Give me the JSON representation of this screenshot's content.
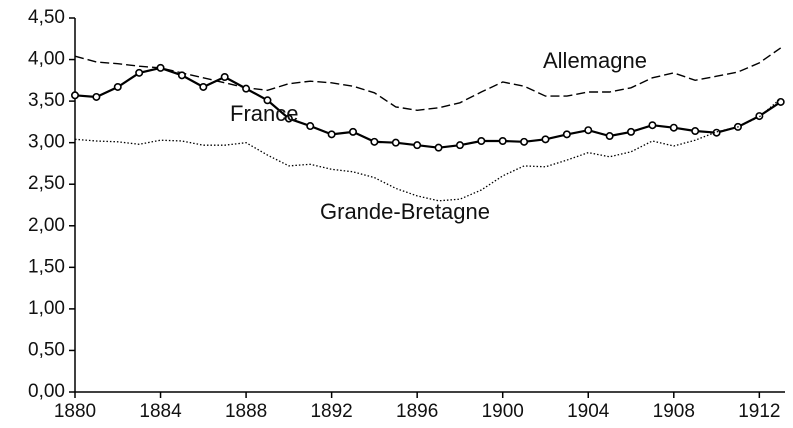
{
  "chart_data": {
    "type": "line",
    "x": [
      1880,
      1881,
      1882,
      1883,
      1884,
      1885,
      1886,
      1887,
      1888,
      1889,
      1890,
      1891,
      1892,
      1893,
      1894,
      1895,
      1896,
      1897,
      1898,
      1899,
      1900,
      1901,
      1902,
      1903,
      1904,
      1905,
      1906,
      1907,
      1908,
      1909,
      1910,
      1911,
      1912,
      1913
    ],
    "series": [
      {
        "name": "Allemagne",
        "color": "#000000",
        "style": "dashed",
        "values": [
          4.04,
          3.97,
          3.95,
          3.92,
          3.9,
          3.84,
          3.78,
          3.72,
          3.66,
          3.63,
          3.71,
          3.74,
          3.72,
          3.68,
          3.6,
          3.43,
          3.39,
          3.42,
          3.48,
          3.61,
          3.73,
          3.68,
          3.56,
          3.56,
          3.61,
          3.61,
          3.66,
          3.78,
          3.84,
          3.75,
          3.8,
          3.85,
          3.96,
          4.14
        ]
      },
      {
        "name": "France",
        "color": "#000000",
        "style": "solid",
        "marker": "circle",
        "values": [
          3.57,
          3.55,
          3.67,
          3.84,
          3.9,
          3.81,
          3.67,
          3.79,
          3.65,
          3.51,
          3.29,
          3.2,
          3.1,
          3.13,
          3.01,
          3.0,
          2.97,
          2.94,
          2.97,
          3.02,
          3.02,
          3.01,
          3.04,
          3.1,
          3.15,
          3.08,
          3.13,
          3.21,
          3.18,
          3.14,
          3.12,
          3.19,
          3.32,
          3.49
        ]
      },
      {
        "name": "Grande-Bretagne",
        "color": "#000000",
        "style": "dotted",
        "values": [
          3.04,
          3.02,
          3.01,
          2.98,
          3.03,
          3.02,
          2.97,
          2.97,
          3.0,
          2.85,
          2.72,
          2.74,
          2.68,
          2.65,
          2.58,
          2.45,
          2.36,
          2.3,
          2.32,
          2.43,
          2.6,
          2.72,
          2.71,
          2.79,
          2.88,
          2.83,
          2.89,
          3.02,
          2.96,
          3.03,
          3.13,
          3.19,
          3.31,
          3.53
        ]
      }
    ],
    "xlim": [
      1880,
      1913.2
    ],
    "xticks": [
      1880,
      1884,
      1888,
      1892,
      1896,
      1900,
      1904,
      1908,
      1912
    ],
    "ylim": [
      0,
      4.5
    ],
    "yticks": [
      {
        "value": 0,
        "label": "0,00"
      },
      {
        "value": 0.5,
        "label": "0,50"
      },
      {
        "value": 1,
        "label": "1,00"
      },
      {
        "value": 1.5,
        "label": "1,50"
      },
      {
        "value": 2,
        "label": "2,00"
      },
      {
        "value": 2.5,
        "label": "2,50"
      },
      {
        "value": 3,
        "label": "3,00"
      },
      {
        "value": 3.5,
        "label": "3,50"
      },
      {
        "value": 4,
        "label": "4,00"
      },
      {
        "value": 4.5,
        "label": "4,50"
      }
    ],
    "grid": false
  }
}
